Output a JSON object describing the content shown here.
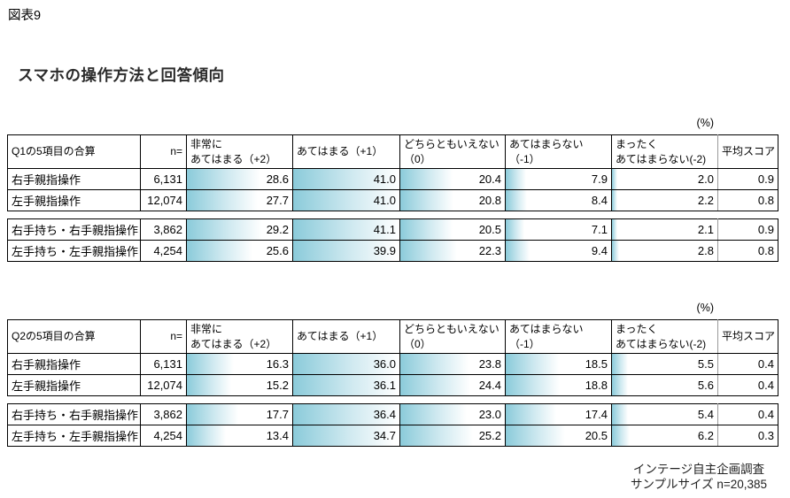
{
  "figure_label": "図表9",
  "page_title": "スマホの操作方法と回答傾向",
  "percent_label": "(%)",
  "columns": {
    "n_label": "n=",
    "value_headers": [
      [
        "非常に",
        "あてはまる（+2）"
      ],
      [
        "あてはまる（+1）"
      ],
      [
        "どちらともいえない",
        "（0）"
      ],
      [
        "あてはまらない",
        "（-1）"
      ],
      [
        "まったく",
        "あてはまらない(-2)"
      ]
    ],
    "score_header": [
      "平均スコア"
    ]
  },
  "colors": {
    "bar_start": "#8bcbda",
    "bar_mid": "#cfe9f0",
    "bar_end": "#ffffff",
    "border": "#000000",
    "score_divider": "#999999"
  },
  "chart_data": [
    {
      "type": "table",
      "title": "Q1の5項目の合算",
      "unit": "%",
      "answer_categories": [
        "非常にあてはまる（+2）",
        "あてはまる（+1）",
        "どちらともいえない（0）",
        "あてはまらない（-1）",
        "まったくあてはまらない(-2)"
      ],
      "groups": [
        {
          "rows": [
            {
              "label": "右手親指操作",
              "n": "6,131",
              "values": [
                "28.6",
                "41.0",
                "20.4",
                "7.9",
                "2.0"
              ],
              "score": "0.9"
            },
            {
              "label": "左手親指操作",
              "n": "12,074",
              "values": [
                "27.7",
                "41.0",
                "20.8",
                "8.4",
                "2.2"
              ],
              "score": "0.8"
            }
          ]
        },
        {
          "rows": [
            {
              "label": "右手持ち・右手親指操作",
              "n": "3,862",
              "values": [
                "29.2",
                "41.1",
                "20.5",
                "7.1",
                "2.1"
              ],
              "score": "0.9"
            },
            {
              "label": "左手持ち・左手親指操作",
              "n": "4,254",
              "values": [
                "25.6",
                "39.9",
                "22.3",
                "9.4",
                "2.8"
              ],
              "score": "0.8"
            }
          ]
        }
      ]
    },
    {
      "type": "table",
      "title": "Q2の5項目の合算",
      "unit": "%",
      "answer_categories": [
        "非常にあてはまる（+2）",
        "あてはまる（+1）",
        "どちらともいえない（0）",
        "あてはまらない（-1）",
        "まったくあてはまらない(-2)"
      ],
      "groups": [
        {
          "rows": [
            {
              "label": "右手親指操作",
              "n": "6,131",
              "values": [
                "16.3",
                "36.0",
                "23.8",
                "18.5",
                "5.5"
              ],
              "score": "0.4"
            },
            {
              "label": "左手親指操作",
              "n": "12,074",
              "values": [
                "15.2",
                "36.1",
                "24.4",
                "18.8",
                "5.6"
              ],
              "score": "0.4"
            }
          ]
        },
        {
          "rows": [
            {
              "label": "右手持ち・右手親指操作",
              "n": "3,862",
              "values": [
                "17.7",
                "36.4",
                "23.0",
                "17.4",
                "5.4"
              ],
              "score": "0.4"
            },
            {
              "label": "左手持ち・左手親指操作",
              "n": "4,254",
              "values": [
                "13.4",
                "34.7",
                "25.2",
                "20.5",
                "6.2"
              ],
              "score": "0.3"
            }
          ]
        }
      ]
    }
  ],
  "footer": {
    "line1": "インテージ自主企画調査",
    "line2": "サンプルサイズ n=20,385"
  }
}
